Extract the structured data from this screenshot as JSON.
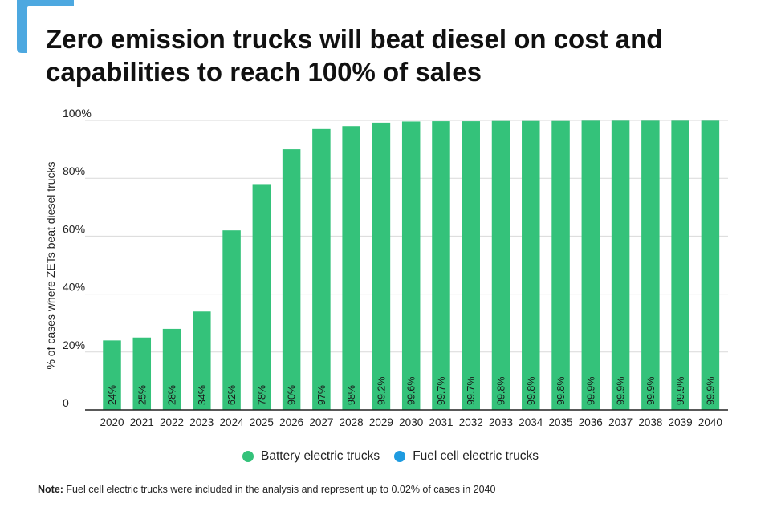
{
  "title": {
    "line1": "Zero emission trucks will beat diesel on cost and",
    "line2": "capabilities to reach 100% of sales"
  },
  "colors": {
    "accent": "#4DA8E0",
    "bar": "#34C27A",
    "fuel_cell": "#1E9BE0",
    "grid": "#D9D9D9",
    "axis": "#222222"
  },
  "chart_data": {
    "type": "bar",
    "ylabel": "% of cases where ZETs beat diesel trucks",
    "xlabel": "",
    "ylim": [
      0,
      100
    ],
    "yticks": [
      0,
      20,
      40,
      60,
      80,
      100
    ],
    "ytick_labels": [
      "0",
      "20%",
      "40%",
      "60%",
      "80%",
      "100%"
    ],
    "grid": true,
    "categories": [
      "2020",
      "2021",
      "2022",
      "2023",
      "2024",
      "2025",
      "2026",
      "2027",
      "2028",
      "2029",
      "2030",
      "2031",
      "2032",
      "2033",
      "2034",
      "2035",
      "2036",
      "2037",
      "2038",
      "2039",
      "2040"
    ],
    "series": [
      {
        "name": "Battery electric trucks",
        "values": [
          24,
          25,
          28,
          34,
          62,
          78,
          90,
          97,
          98,
          99.2,
          99.6,
          99.7,
          99.7,
          99.8,
          99.8,
          99.8,
          99.9,
          99.9,
          99.9,
          99.9,
          99.9
        ],
        "data_labels": [
          "24%",
          "25%",
          "28%",
          "34%",
          "62%",
          "78%",
          "90%",
          "97%",
          "98%",
          "99.2%",
          "99.6%",
          "99.7%",
          "99.7%",
          "99.8%",
          "99.8%",
          "99.8%",
          "99.9%",
          "99.9%",
          "99.9%",
          "99.9%",
          "99.9%"
        ]
      }
    ],
    "legend": {
      "placement": "bottom",
      "entries": [
        "Battery electric trucks",
        "Fuel cell electric trucks"
      ]
    }
  },
  "note": {
    "label": "Note:",
    "text": " Fuel cell electric trucks were included in the analysis and represent up to 0.02% of cases in 2040"
  }
}
